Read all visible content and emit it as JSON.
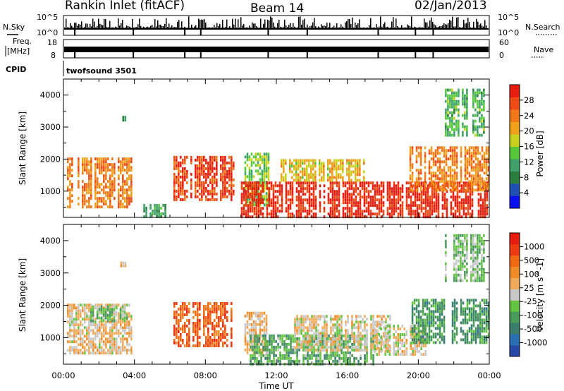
{
  "header": {
    "station": "Rankin Inlet (fitACF)",
    "beam": "Beam 14",
    "date": "02/Jan/2013"
  },
  "strips": {
    "nsky_label": "N.Sky",
    "nsearch_label": "N.Search",
    "freq_label_1": "Freq.",
    "freq_label_2": "[MHz]",
    "nave_label": "Nave",
    "cpid_label": "CPID",
    "cpid_value": "twofsound 3501",
    "nsky_ticks": [
      "10^5",
      "10^0"
    ],
    "nsearch_ticks": [
      "10^5",
      "10^0"
    ],
    "freq_ticks": [
      "18",
      "8"
    ],
    "nave_ticks": [
      "60",
      "0"
    ]
  },
  "panels": {
    "ylabel": "Slant Range [km]",
    "xlabel": "Time UT",
    "y_ticks": [
      "4000",
      "3000",
      "2000",
      "1000"
    ],
    "x_ticks": [
      "00:00",
      "04:00",
      "08:00",
      "12:00",
      "16:00",
      "20:00",
      "00:00"
    ]
  },
  "chart_data": [
    {
      "type": "heatmap",
      "title": "",
      "xlabel": "Time UT",
      "ylabel": "Slant Range [km]",
      "xlim": [
        "00:00",
        "24:00"
      ],
      "ylim": [
        180,
        4500
      ],
      "colorbar": {
        "label": "Power [dB]",
        "ticks": [
          "28",
          "24",
          "20",
          "16",
          "12",
          "8",
          "4"
        ],
        "range": [
          0,
          30
        ],
        "colors": [
          "#0a10f0",
          "#1e50b4",
          "#2a7d3c",
          "#3fa06a",
          "#55c83a",
          "#c8d21e",
          "#f0a01a",
          "#f07818",
          "#ee4a14",
          "#e81c0e"
        ]
      },
      "regions": [
        {
          "t": [
            0.2,
            3.9
          ],
          "r": [
            500,
            2050
          ],
          "value": 22
        },
        {
          "t": [
            4.5,
            5.8
          ],
          "r": [
            180,
            600
          ],
          "value": 10
        },
        {
          "t": [
            6.2,
            9.6
          ],
          "r": [
            700,
            2100
          ],
          "value": 26
        },
        {
          "t": [
            10.2,
            11.6
          ],
          "r": [
            500,
            2200
          ],
          "value": 14
        },
        {
          "t": [
            10.0,
            24.0
          ],
          "r": [
            180,
            1300
          ],
          "value": 28
        },
        {
          "t": [
            12.0,
            17.0
          ],
          "r": [
            1300,
            2000
          ],
          "value": 18
        },
        {
          "t": [
            19.5,
            24.0
          ],
          "r": [
            1000,
            2400
          ],
          "value": 22
        },
        {
          "t": [
            21.5,
            23.8
          ],
          "r": [
            2700,
            4200
          ],
          "value": 12
        },
        {
          "t": [
            3.2,
            3.6
          ],
          "r": [
            3150,
            3350
          ],
          "value": 8
        }
      ]
    },
    {
      "type": "heatmap",
      "title": "",
      "xlabel": "Time UT",
      "ylabel": "Slant Range [km]",
      "xlim": [
        "00:00",
        "24:00"
      ],
      "ylim": [
        180,
        4500
      ],
      "colorbar": {
        "label": "Velocity [m s^-1]",
        "ticks": [
          "1000",
          "500",
          "100",
          "25",
          "-25",
          "-100",
          "-500",
          "-1000"
        ],
        "range": [
          -1000,
          1000
        ],
        "colors": [
          "#2848a8",
          "#2a6eb4",
          "#3a7e6c",
          "#4a9a5a",
          "#63c442",
          "#c8c8c8",
          "#f0aa5a",
          "#f08c28",
          "#f06a14",
          "#ee3a10",
          "#e81c0e"
        ]
      },
      "regions": [
        {
          "t": [
            0.2,
            3.9
          ],
          "r": [
            500,
            2050
          ],
          "value": 120
        },
        {
          "t": [
            1.5,
            3.8
          ],
          "r": [
            1500,
            2000
          ],
          "value": -200
        },
        {
          "t": [
            6.2,
            9.6
          ],
          "r": [
            700,
            2100
          ],
          "value": 600
        },
        {
          "t": [
            10.2,
            11.6
          ],
          "r": [
            500,
            1800
          ],
          "value": 150
        },
        {
          "t": [
            10.5,
            17.5
          ],
          "r": [
            180,
            1100
          ],
          "value": -300
        },
        {
          "t": [
            13.0,
            18.5
          ],
          "r": [
            600,
            1700
          ],
          "value": 80
        },
        {
          "t": [
            17.5,
            20.5
          ],
          "r": [
            400,
            1400
          ],
          "value": 60
        },
        {
          "t": [
            19.5,
            24.0
          ],
          "r": [
            800,
            2200
          ],
          "value": -400
        },
        {
          "t": [
            21.5,
            23.8
          ],
          "r": [
            2700,
            4200
          ],
          "value": -200
        },
        {
          "t": [
            3.2,
            3.6
          ],
          "r": [
            3150,
            3350
          ],
          "value": 100
        }
      ]
    }
  ]
}
